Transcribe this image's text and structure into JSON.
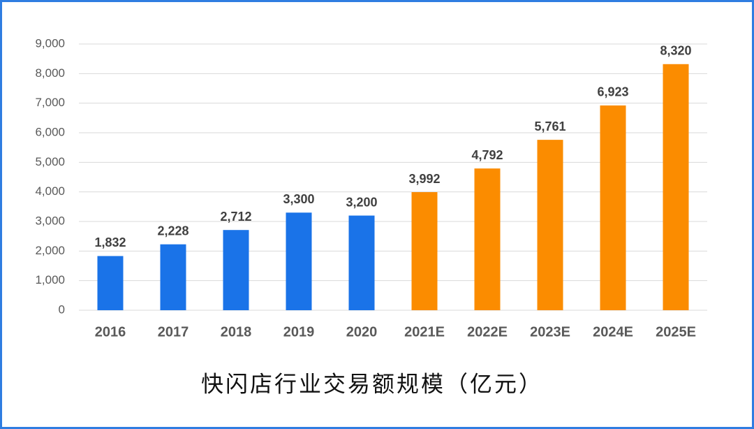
{
  "chart_data": {
    "type": "bar",
    "title": "快闪店行业交易额规模（亿元）",
    "categories": [
      "2016",
      "2017",
      "2018",
      "2019",
      "2020",
      "2021E",
      "2022E",
      "2023E",
      "2024E",
      "2025E"
    ],
    "values": [
      1832,
      2228,
      2712,
      3300,
      3200,
      3992,
      4792,
      5761,
      6923,
      8320
    ],
    "value_labels": [
      "1,832",
      "2,228",
      "2,712",
      "3,300",
      "3,200",
      "3,992",
      "4,792",
      "5,761",
      "6,923",
      "8,320"
    ],
    "colors": [
      "#1a73e8",
      "#1a73e8",
      "#1a73e8",
      "#1a73e8",
      "#1a73e8",
      "#fb8c00",
      "#fb8c00",
      "#fb8c00",
      "#fb8c00",
      "#fb8c00"
    ],
    "ylim": [
      0,
      9000
    ],
    "yticks": [
      0,
      {
        "value": 1000,
        "label": "1,000"
      },
      {
        "value": 2000,
        "label": "2,000"
      },
      {
        "value": 3000,
        "label": "3,000"
      },
      {
        "value": 4000,
        "label": "4,000"
      },
      {
        "value": 5000,
        "label": "5,000"
      },
      {
        "value": 6000,
        "label": "6,000"
      },
      {
        "value": 7000,
        "label": "7,000"
      },
      {
        "value": 8000,
        "label": "8,000"
      },
      {
        "value": 9000,
        "label": "9,000"
      }
    ],
    "grid": true
  }
}
